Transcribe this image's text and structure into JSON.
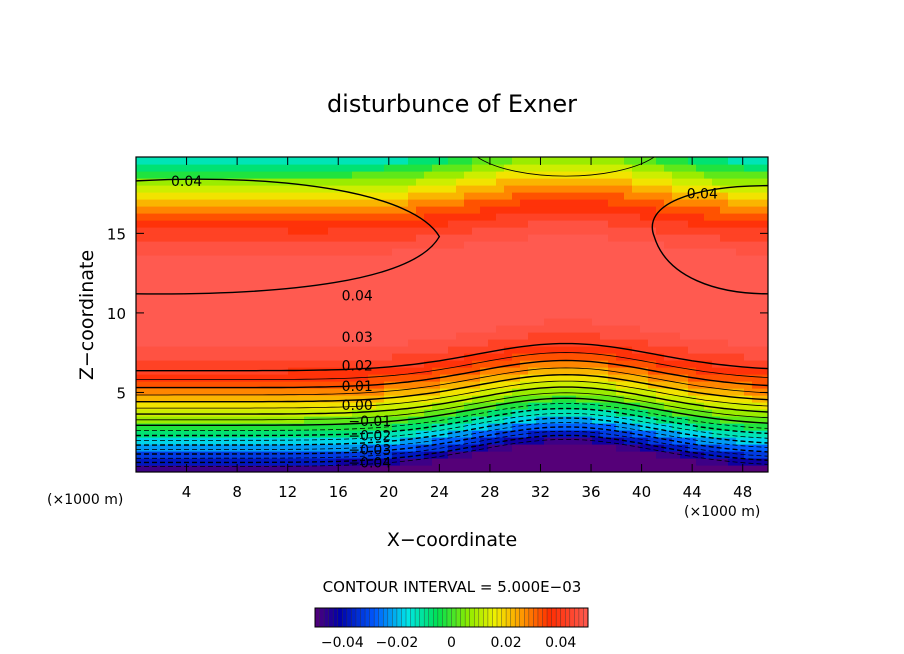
{
  "chart_data": {
    "type": "heatmap",
    "title": "disturbunce of Exner",
    "xlabel": "X−coordinate",
    "ylabel": "Z−coordinate",
    "x_unit": "(×1000 m)",
    "z_unit": "(×1000 m)",
    "xlim": [
      0,
      50
    ],
    "ylim": [
      0,
      19.8
    ],
    "x_ticks": [
      4,
      8,
      12,
      16,
      20,
      24,
      28,
      32,
      36,
      40,
      44,
      48
    ],
    "y_ticks": [
      5,
      10,
      15
    ],
    "contour_interval_text": "CONTOUR INTERVAL = 5.000E−03",
    "value_range": [
      -0.05,
      0.05
    ],
    "contour_labels": [
      {
        "text": "0.04",
        "x": 4,
        "z": 18.3
      },
      {
        "text": "0.04",
        "x": 44.8,
        "z": 17.5
      },
      {
        "text": "0.04",
        "x": 17.5,
        "z": 11.1
      },
      {
        "text": "0.03",
        "x": 17.5,
        "z": 8.5
      },
      {
        "text": "0.02",
        "x": 17.5,
        "z": 6.7
      },
      {
        "text": "0.01",
        "x": 17.5,
        "z": 5.4
      },
      {
        "text": "0.00",
        "x": 17.5,
        "z": 4.2
      },
      {
        "text": "−0.01",
        "x": 18.5,
        "z": 3.2
      },
      {
        "text": "−0.02",
        "x": 18.5,
        "z": 2.3
      },
      {
        "text": "−0.03",
        "x": 18.5,
        "z": 1.4
      },
      {
        "text": "−0.04",
        "x": 18.5,
        "z": 0.6
      }
    ],
    "colorbar": {
      "ticks": [
        {
          "value": -0.04,
          "label": "−0.04"
        },
        {
          "value": -0.02,
          "label": "−0.02"
        },
        {
          "value": 0,
          "label": "0"
        },
        {
          "value": 0.02,
          "label": "0.02"
        },
        {
          "value": 0.04,
          "label": "0.04"
        }
      ]
    }
  }
}
